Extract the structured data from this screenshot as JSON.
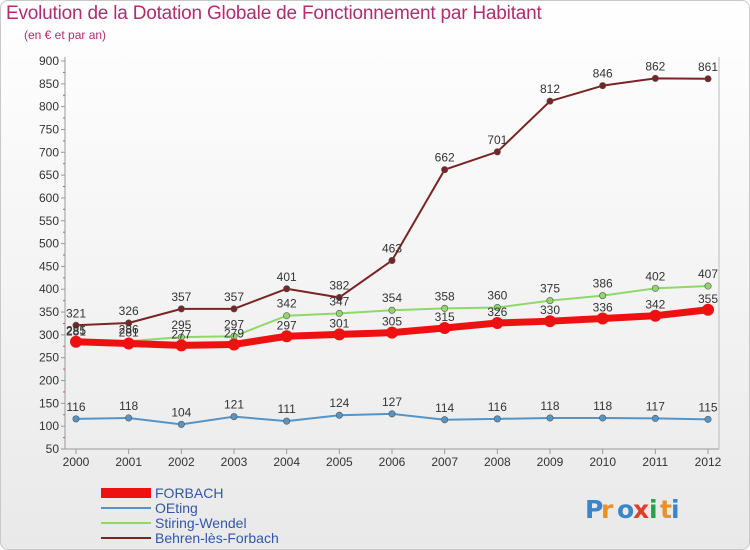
{
  "page": {
    "title": "Evolution de la Dotation Globale de Fonctionnement par Habitant",
    "subtitle": "(en € et par an)",
    "brand": "Proxiti"
  },
  "chart_data": {
    "type": "line",
    "title": "Evolution de la Dotation Globale de Fonctionnement par Habitant",
    "subtitle": "(en € et par an)",
    "xlabel": "",
    "ylabel": "",
    "x": [
      2000,
      2001,
      2002,
      2003,
      2004,
      2005,
      2006,
      2007,
      2008,
      2009,
      2010,
      2011,
      2012
    ],
    "ylim": [
      50,
      900
    ],
    "yticks": [
      50,
      100,
      150,
      200,
      250,
      300,
      350,
      400,
      450,
      500,
      550,
      600,
      650,
      700,
      750,
      800,
      850,
      900
    ],
    "grid": false,
    "legend": "bottom-left",
    "series": [
      {
        "name": "FORBACH",
        "color": "#ee1111",
        "values": [
          285,
          281,
          277,
          279,
          297,
          301,
          305,
          315,
          326,
          330,
          336,
          342,
          355
        ],
        "label_values": [
          "285",
          "281",
          "277",
          "279",
          "297",
          "301",
          "305",
          "315",
          "326",
          "330",
          "336",
          "342",
          "355"
        ]
      },
      {
        "name": "OEting",
        "color": "#5595c6",
        "values": [
          116,
          118,
          104,
          121,
          111,
          124,
          127,
          114,
          116,
          118,
          118,
          117,
          115
        ],
        "label_values": [
          "116",
          "118",
          "104",
          "121",
          "111",
          "124",
          "127",
          "114",
          "116",
          "118",
          "118",
          "117",
          "115"
        ]
      },
      {
        "name": "Stiring-Wendel",
        "color": "#8fd86a",
        "values": [
          281,
          286,
          295,
          297,
          342,
          347,
          354,
          358,
          360,
          375,
          386,
          402,
          407
        ],
        "label_values": [
          "281",
          "286",
          "295",
          "297",
          "342",
          "347",
          "354",
          "358",
          "360",
          "375",
          "386",
          "402",
          "407"
        ]
      },
      {
        "name": "Behren-lès-Forbach",
        "color": "#7a2424",
        "values": [
          321,
          326,
          357,
          357,
          401,
          382,
          463,
          662,
          701,
          812,
          846,
          862,
          861
        ],
        "label_values": [
          "321",
          "326",
          "357",
          "357",
          "401",
          "382",
          "463",
          "662",
          "701",
          "812",
          "846",
          "862",
          "861"
        ]
      }
    ]
  }
}
